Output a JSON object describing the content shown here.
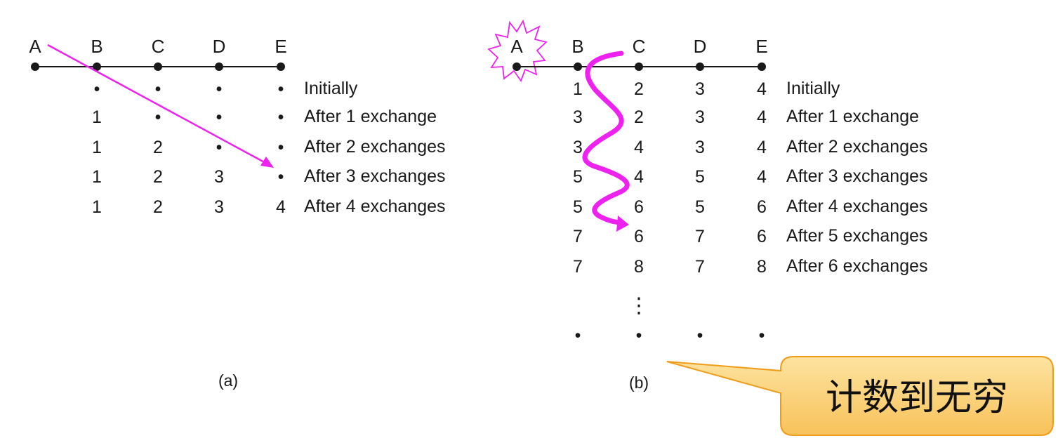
{
  "panel_a": {
    "caption": "(a)",
    "nodes": [
      "A",
      "B",
      "C",
      "D",
      "E"
    ],
    "rows": [
      {
        "label": "Initially",
        "cells": [
          "•",
          "•",
          "•",
          "•"
        ]
      },
      {
        "label": "After 1 exchange",
        "cells": [
          "1",
          "•",
          "•",
          "•"
        ]
      },
      {
        "label": "After 2 exchanges",
        "cells": [
          "1",
          "2",
          "•",
          "•"
        ]
      },
      {
        "label": "After 3 exchanges",
        "cells": [
          "1",
          "2",
          "3",
          "•"
        ]
      },
      {
        "label": "After 4 exchanges",
        "cells": [
          "1",
          "2",
          "3",
          "4"
        ]
      }
    ]
  },
  "panel_b": {
    "caption": "(b)",
    "nodes": [
      "A",
      "B",
      "C",
      "D",
      "E"
    ],
    "rows": [
      {
        "label": "Initially",
        "cells": [
          "1",
          "2",
          "3",
          "4"
        ]
      },
      {
        "label": "After 1 exchange",
        "cells": [
          "3",
          "2",
          "3",
          "4"
        ]
      },
      {
        "label": "After 2 exchanges",
        "cells": [
          "3",
          "4",
          "3",
          "4"
        ]
      },
      {
        "label": "After 3 exchanges",
        "cells": [
          "5",
          "4",
          "5",
          "4"
        ]
      },
      {
        "label": "After 4 exchanges",
        "cells": [
          "5",
          "6",
          "5",
          "6"
        ]
      },
      {
        "label": "After 5 exchanges",
        "cells": [
          "7",
          "6",
          "7",
          "6"
        ]
      },
      {
        "label": "After 6 exchanges",
        "cells": [
          "7",
          "8",
          "7",
          "8"
        ]
      }
    ],
    "ellipsis": "⋮",
    "final_cells": [
      "•",
      "•",
      "•",
      "•"
    ]
  },
  "callout": {
    "text": "计数到无穷"
  },
  "colors": {
    "accent": "#ee22ee",
    "callout_fill": "#fbd27a",
    "callout_stroke": "#ef9c1a",
    "ink": "#1a1a1a"
  }
}
